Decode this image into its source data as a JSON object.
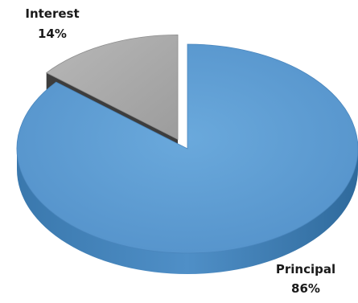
{
  "chart_data": {
    "type": "pie",
    "style": "3d-exploded",
    "slices": [
      {
        "label": "Principal",
        "value": 86,
        "display": "86%",
        "color": "#5b9bd5"
      },
      {
        "label": "Interest",
        "value": 14,
        "display": "14%",
        "color": "#a6a6a6"
      }
    ],
    "legend": "none",
    "data_labels": "category-and-percent"
  }
}
